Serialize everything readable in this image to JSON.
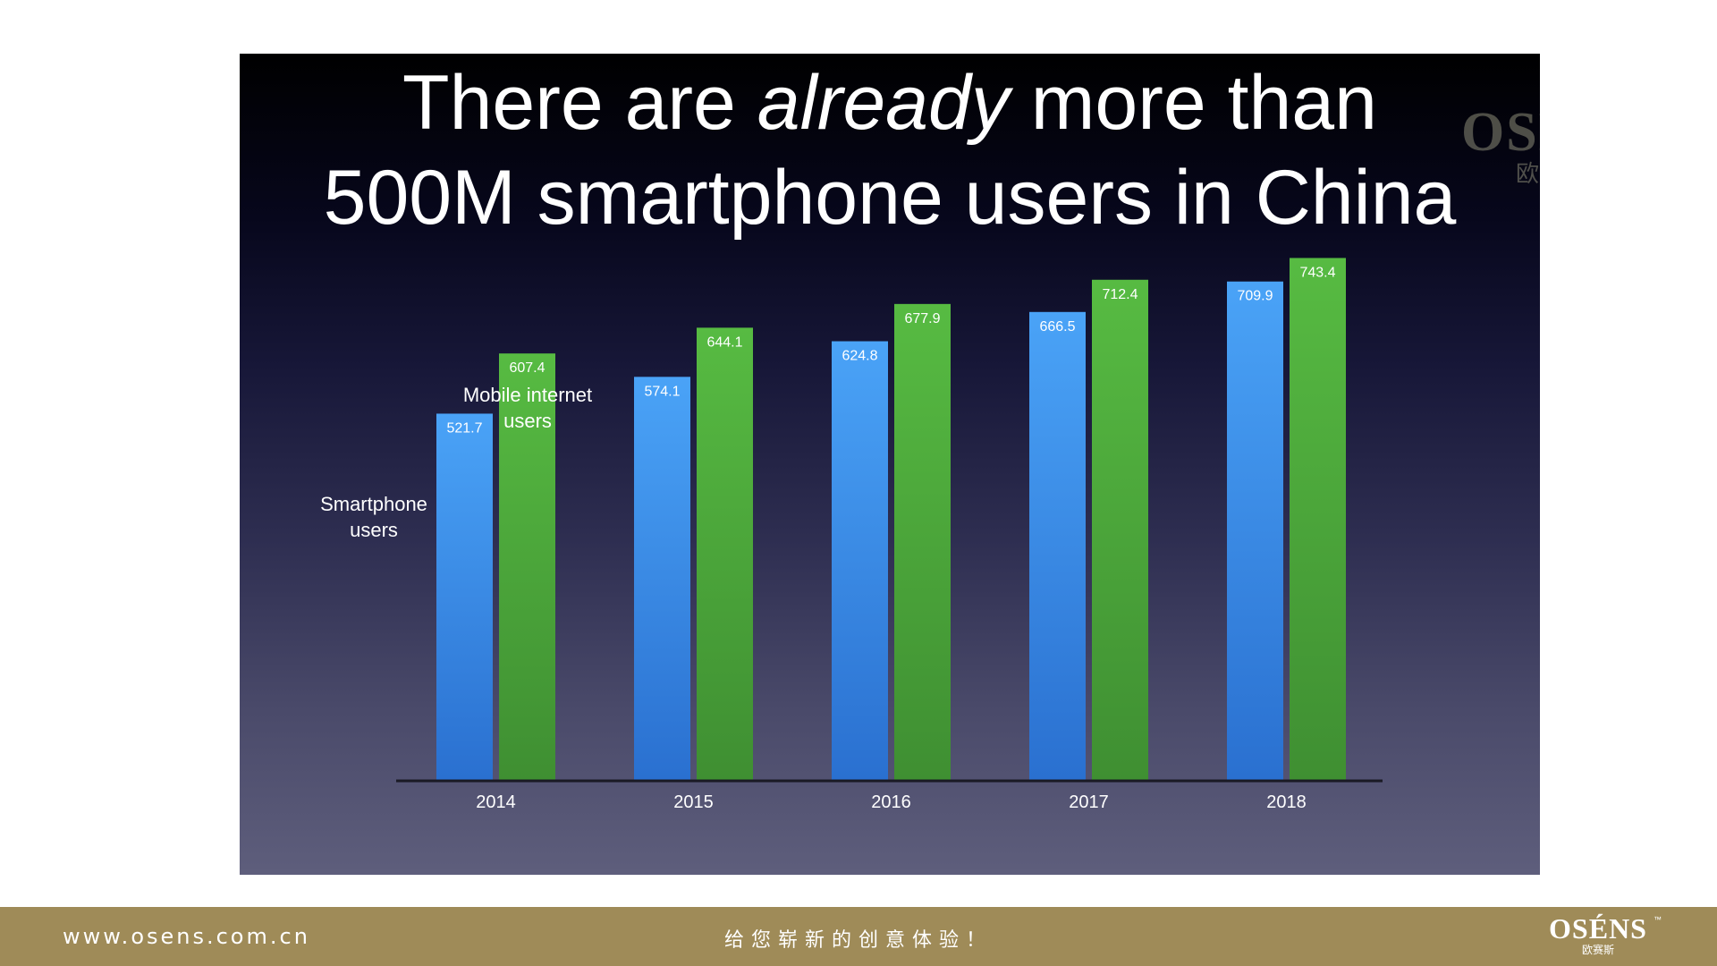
{
  "slide": {
    "title_line1_before": "There are ",
    "title_line1_emphasis": "already",
    "title_line1_after": " more than",
    "title_line2": "500M smartphone users in China"
  },
  "watermark": {
    "brand": "OSÉNS",
    "brand_cn": "欧赛斯",
    "registered_mark": "®"
  },
  "chart_data": {
    "type": "bar",
    "categories": [
      "2014",
      "2015",
      "2016",
      "2017",
      "2018"
    ],
    "series": [
      {
        "name": "Smartphone users",
        "values": [
          521.7,
          574.1,
          624.8,
          666.5,
          709.9
        ],
        "color": "#3a8eea"
      },
      {
        "name": "Mobile internet users",
        "values": [
          607.4,
          644.1,
          677.9,
          712.4,
          743.4
        ],
        "color": "#4caa3a"
      }
    ],
    "data_labels": {
      "series_0": [
        "521.7",
        "574.1",
        "624.8",
        "666.5",
        "709.9"
      ],
      "series_1": [
        "607.4",
        "644.1",
        "677.9",
        "712.4",
        "743.4"
      ]
    },
    "series_labels": {
      "smartphone_line1": "Smartphone",
      "smartphone_line2": "users",
      "mobile_line1": "Mobile internet",
      "mobile_line2": "users"
    },
    "title": "",
    "xlabel": "",
    "ylabel": "",
    "ylim": [
      0,
      770
    ],
    "grid": false,
    "legend": "none"
  },
  "footer": {
    "url": "www.osens.com.cn",
    "slogan": "给您崭新的创意体验！",
    "logo": "OSÉNS",
    "logo_cn": "欧赛斯",
    "trademark": "™"
  },
  "colors": {
    "footer_bg": "#9f8b58",
    "smartphone_bar": "#3a8eea",
    "mobile_bar": "#4caa3a"
  }
}
